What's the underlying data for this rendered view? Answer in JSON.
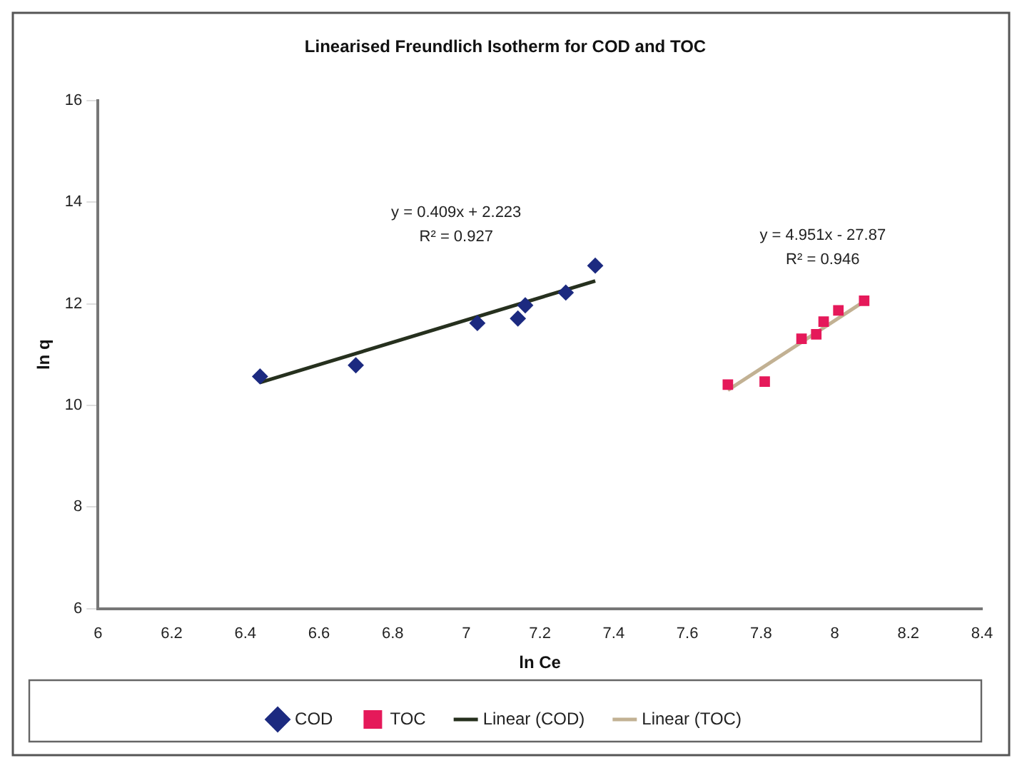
{
  "chart_data": {
    "type": "scatter",
    "title": "Linearised Freundlich Isotherm for COD and TOC",
    "xlabel": "ln Ce",
    "ylabel": "ln q",
    "xlim": [
      6,
      8.4
    ],
    "xticks": [
      6,
      6.2,
      6.4,
      6.6,
      6.8,
      7,
      7.2,
      7.4,
      7.6,
      7.8,
      8,
      8.2,
      8.4
    ],
    "ylim": [
      6,
      16
    ],
    "yticks": [
      6,
      8,
      10,
      12,
      14,
      16
    ],
    "grid": false,
    "legend": "bottom",
    "series": [
      {
        "name": "COD",
        "type": "scatter",
        "marker": "diamond",
        "color": "#1c2a80",
        "x": [
          6.44,
          6.7,
          7.03,
          7.14,
          7.16,
          7.27,
          7.35
        ],
        "values": [
          10.57,
          10.79,
          11.62,
          11.71,
          11.97,
          12.22,
          12.75
        ]
      },
      {
        "name": "TOC",
        "type": "scatter",
        "marker": "square",
        "color": "#e5195a",
        "x": [
          7.71,
          7.81,
          7.91,
          7.95,
          7.97,
          8.01,
          8.08
        ],
        "values": [
          10.41,
          10.47,
          11.31,
          11.4,
          11.65,
          11.87,
          12.06
        ]
      },
      {
        "name": "Linear (COD)",
        "type": "line",
        "marker": "none",
        "line_style": "solid",
        "color": "#26301e",
        "x": [
          6.44,
          7.35
        ],
        "values": [
          10.45,
          12.45
        ]
      },
      {
        "name": "Linear (TOC)",
        "type": "line",
        "marker": "none",
        "line_style": "solid",
        "color": "#c2b193",
        "x": [
          7.71,
          8.07
        ],
        "values": [
          10.3,
          12
        ]
      }
    ],
    "annotations": [
      "y = 0.409x + 2.223",
      "R² = 0.927",
      "y = 4.951x - 27.87",
      "R² = 0.946"
    ]
  }
}
